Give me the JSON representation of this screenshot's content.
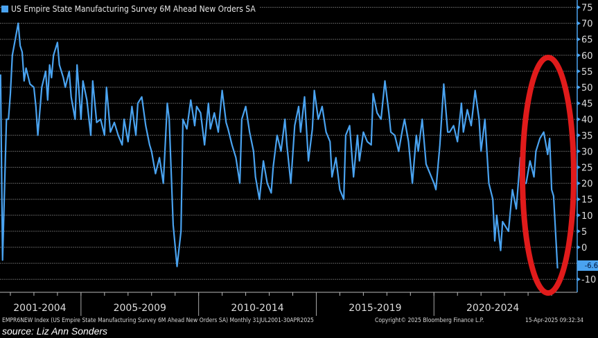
{
  "chart_data": {
    "type": "line",
    "title": "US Empire State Manufacturing Survey 6M Ahead New Orders SA",
    "x_unit": "months since Jul 2001",
    "xlim": [
      0,
      285
    ],
    "ylim": [
      -13,
      77
    ],
    "yticks": [
      -10,
      -5,
      0,
      5,
      10,
      15,
      20,
      25,
      30,
      35,
      40,
      45,
      50,
      55,
      60,
      65,
      70,
      75
    ],
    "ytick_labels": [
      "-10",
      "",
      "0",
      "5",
      "10",
      "15",
      "20",
      "25",
      "30",
      "35",
      "40",
      "45",
      "50",
      "55",
      "60",
      "65",
      "70",
      "75"
    ],
    "grid": true,
    "legend_position": "top-left",
    "color": "#4aa3f0",
    "categories": [
      "2001-2004",
      "2005-2009",
      "2010-2014",
      "2015-2019",
      "2020-2024"
    ],
    "category_bounds": [
      0,
      42,
      102,
      162,
      222,
      282
    ],
    "last_value_label": "-6.6",
    "series": [
      {
        "name": "US Empire State Manufacturing Survey 6M Ahead New Orders SA",
        "x": [
          1,
          2,
          4,
          5,
          6,
          7,
          10,
          11,
          12,
          13,
          14,
          16,
          18,
          19,
          20,
          22,
          24,
          25,
          26,
          27,
          28,
          30,
          31,
          33,
          34,
          36,
          37,
          39,
          40,
          42,
          43,
          45,
          47,
          48,
          50,
          52,
          54,
          55,
          57,
          59,
          61,
          63,
          64,
          66,
          68,
          70,
          71,
          73,
          75,
          77,
          78,
          80,
          82,
          84,
          86,
          87,
          89,
          91,
          93,
          94,
          96,
          98,
          100,
          101,
          103,
          105,
          107,
          108,
          110,
          112,
          114,
          116,
          117,
          119,
          121,
          123,
          124,
          126,
          128,
          130,
          131,
          133,
          135,
          137,
          139,
          140,
          142,
          144,
          146,
          147,
          149,
          151,
          153,
          154,
          156,
          158,
          160,
          161,
          163,
          165,
          167,
          169,
          170,
          172,
          174,
          176,
          177,
          179,
          181,
          183,
          184,
          186,
          188,
          190,
          191,
          193,
          195,
          197,
          199,
          200,
          202,
          204,
          206,
          207,
          209,
          211,
          213,
          214,
          216,
          218,
          220,
          222,
          223,
          225,
          227,
          229,
          230,
          232,
          234,
          236,
          237,
          239,
          241,
          243,
          245,
          246,
          248,
          250,
          252,
          253,
          254,
          256,
          257,
          259,
          260,
          262,
          264,
          266,
          267,
          269,
          271,
          273,
          274,
          276,
          278,
          280,
          281,
          282,
          283,
          285
        ],
        "values": [
          54,
          -4,
          40,
          40,
          48,
          60,
          70,
          63,
          61,
          52,
          56,
          51,
          50,
          44,
          35,
          50,
          55,
          46,
          57,
          53,
          60,
          64,
          57,
          53,
          50,
          55,
          47,
          40,
          57,
          40,
          52,
          46,
          35,
          52,
          39,
          40,
          35,
          50,
          36,
          39,
          35,
          32,
          40,
          33,
          44,
          35,
          45,
          47,
          38,
          32,
          30,
          23,
          28,
          20,
          45,
          40,
          7,
          -6,
          5,
          40,
          37,
          46,
          38,
          44,
          42,
          32,
          45,
          37,
          42,
          36,
          49,
          39,
          37,
          32,
          28,
          20,
          40,
          44,
          36,
          30,
          22,
          15,
          27,
          20,
          17,
          25,
          35,
          30,
          40,
          32,
          20,
          38,
          44,
          36,
          47,
          27,
          37,
          49,
          40,
          44,
          36,
          33,
          22,
          28,
          18,
          15,
          35,
          38,
          22,
          35,
          27,
          36,
          33,
          32,
          48,
          42,
          40,
          52,
          42,
          36,
          35,
          30,
          37,
          40,
          33,
          20,
          35,
          30,
          40,
          26,
          23,
          20,
          18,
          32,
          51,
          36,
          36,
          38,
          33,
          45,
          36,
          43,
          38,
          49,
          40,
          30,
          40,
          20,
          15,
          2,
          10,
          -1,
          8,
          6,
          5,
          18,
          12,
          28,
          20,
          20,
          27,
          22,
          30,
          34,
          36,
          29,
          34,
          18,
          16,
          -6.6
        ]
      }
    ]
  },
  "footer": {
    "description": "EMPR6NEW Index (US Empire State Manufacturing Survey 6M Ahead New Orders SA)  Monthly 31JUL2001-30APR2025",
    "copyright": "Copyright© 2025 Bloomberg Finance L.P.",
    "timestamp": "15-Apr-2025 09:32:34",
    "source": "source: Liz Ann Sonders"
  },
  "annotation": {
    "color": "#e01b1b",
    "shape": "ellipse"
  }
}
